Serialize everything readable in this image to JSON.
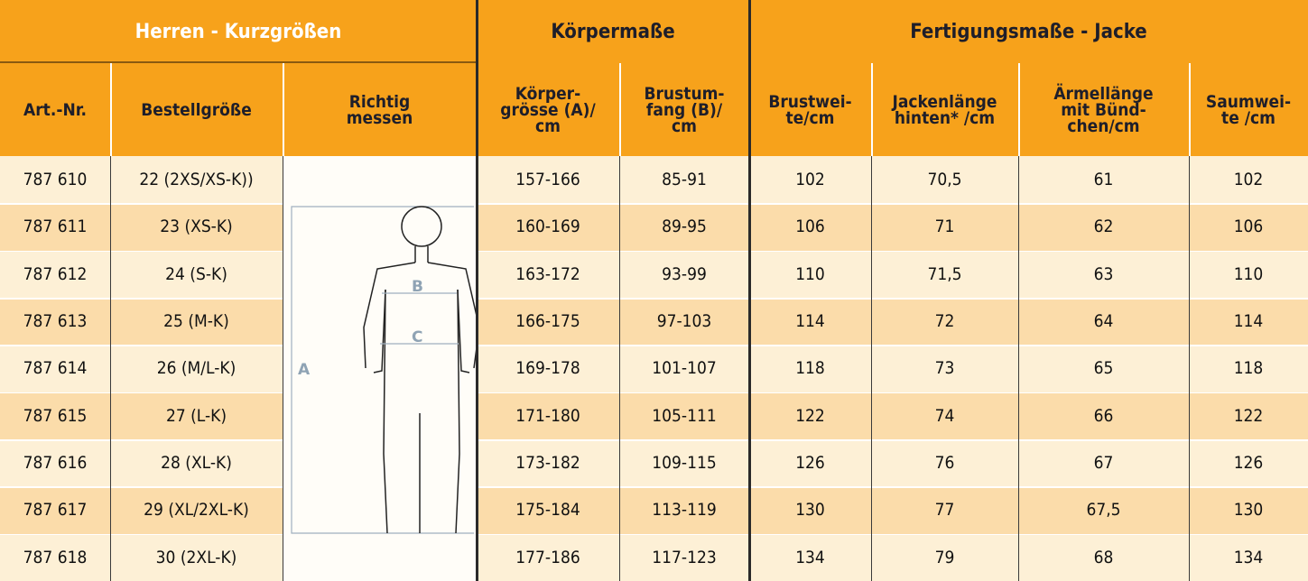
{
  "header": {
    "groups": [
      "Herren - Kurzgrößen",
      "Körpermaße",
      "Fertigungsmaße - Jacke"
    ],
    "columns": [
      "Art.-Nr.",
      "Bestellgröße",
      "Richtig\nmessen",
      "Körper-\ngrösse (A)/\ncm",
      "Brustum-\nfang  (B)/\ncm",
      "Brustwei-\nte/cm",
      "Jackenlänge\nhinten* /cm",
      "Ärmellänge\nmit Bünd-\nchen/cm",
      "Saumwei-\nte /cm"
    ]
  },
  "figure": {
    "labels": [
      "A",
      "B",
      "C"
    ]
  },
  "table": {
    "rows": [
      [
        "787 610",
        "22 (2XS/XS-K))",
        "157-166",
        "85-91",
        "102",
        "70,5",
        "61",
        "102"
      ],
      [
        "787 611",
        "23 (XS-K)",
        "160-169",
        "89-95",
        "106",
        "71",
        "62",
        "106"
      ],
      [
        "787 612",
        "24 (S-K)",
        "163-172",
        "93-99",
        "110",
        "71,5",
        "63",
        "110"
      ],
      [
        "787 613",
        "25 (M-K)",
        "166-175",
        "97-103",
        "114",
        "72",
        "64",
        "114"
      ],
      [
        "787 614",
        "26 (M/L-K)",
        "169-178",
        "101-107",
        "118",
        "73",
        "65",
        "118"
      ],
      [
        "787 615",
        "27 (L-K)",
        "171-180",
        "105-111",
        "122",
        "74",
        "66",
        "122"
      ],
      [
        "787 616",
        "28 (XL-K)",
        "173-182",
        "109-115",
        "126",
        "76",
        "67",
        "126"
      ],
      [
        "787 617",
        "29 (XL/2XL-K)",
        "175-184",
        "113-119",
        "130",
        "77",
        "67,5",
        "130"
      ],
      [
        "787 618",
        "30 (2XL-K)",
        "177-186",
        "117-123",
        "134",
        "79",
        "68",
        "134"
      ]
    ]
  }
}
